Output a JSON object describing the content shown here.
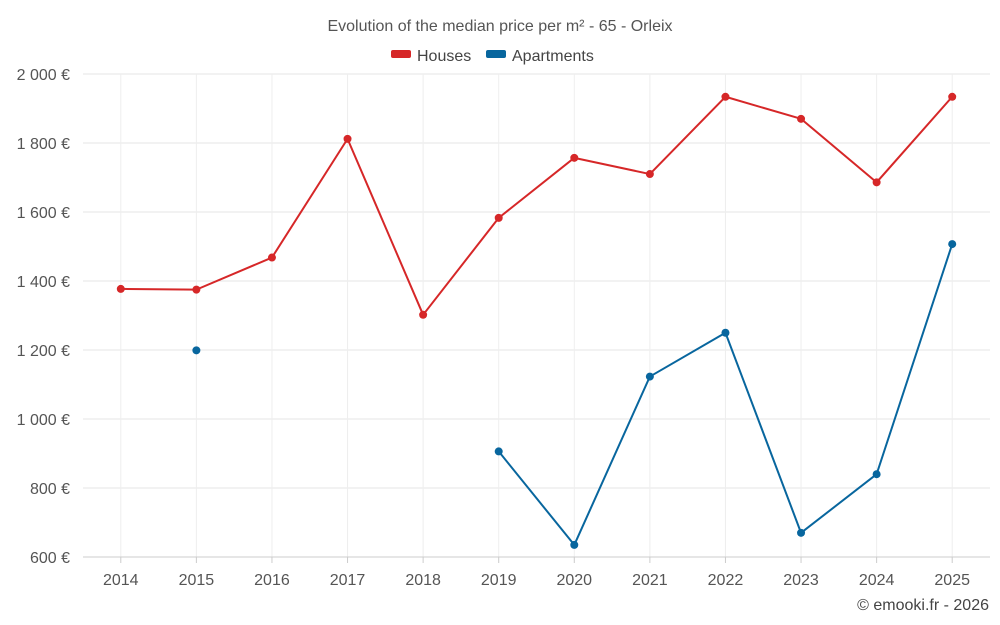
{
  "chart_data": {
    "type": "line",
    "title": "Evolution of the median price per m² - 65 - Orleix",
    "categories": [
      "2014",
      "2015",
      "2016",
      "2017",
      "2018",
      "2019",
      "2020",
      "2021",
      "2022",
      "2023",
      "2024",
      "2025"
    ],
    "y_ticks": [
      {
        "value": 600,
        "label": "600 €"
      },
      {
        "value": 800,
        "label": "800 €"
      },
      {
        "value": 1000,
        "label": "1 000 €"
      },
      {
        "value": 1200,
        "label": "1 200 €"
      },
      {
        "value": 1400,
        "label": "1 400 €"
      },
      {
        "value": 1600,
        "label": "1 600 €"
      },
      {
        "value": 1800,
        "label": "1 800 €"
      },
      {
        "value": 2000,
        "label": "2 000 €"
      }
    ],
    "ylim": [
      600,
      2000
    ],
    "grid": true,
    "legend_position": "top-center",
    "series": [
      {
        "name": "Houses",
        "color": "#d62728",
        "values": [
          1377,
          1375,
          1468,
          1812,
          1302,
          1583,
          1757,
          1710,
          1934,
          1870,
          1686,
          1934
        ]
      },
      {
        "name": "Apartments",
        "color": "#08669e",
        "values": [
          null,
          1199,
          null,
          null,
          null,
          906,
          635,
          1123,
          1250,
          670,
          840,
          1507
        ]
      }
    ]
  },
  "credit": "© emooki.fr - 2026"
}
